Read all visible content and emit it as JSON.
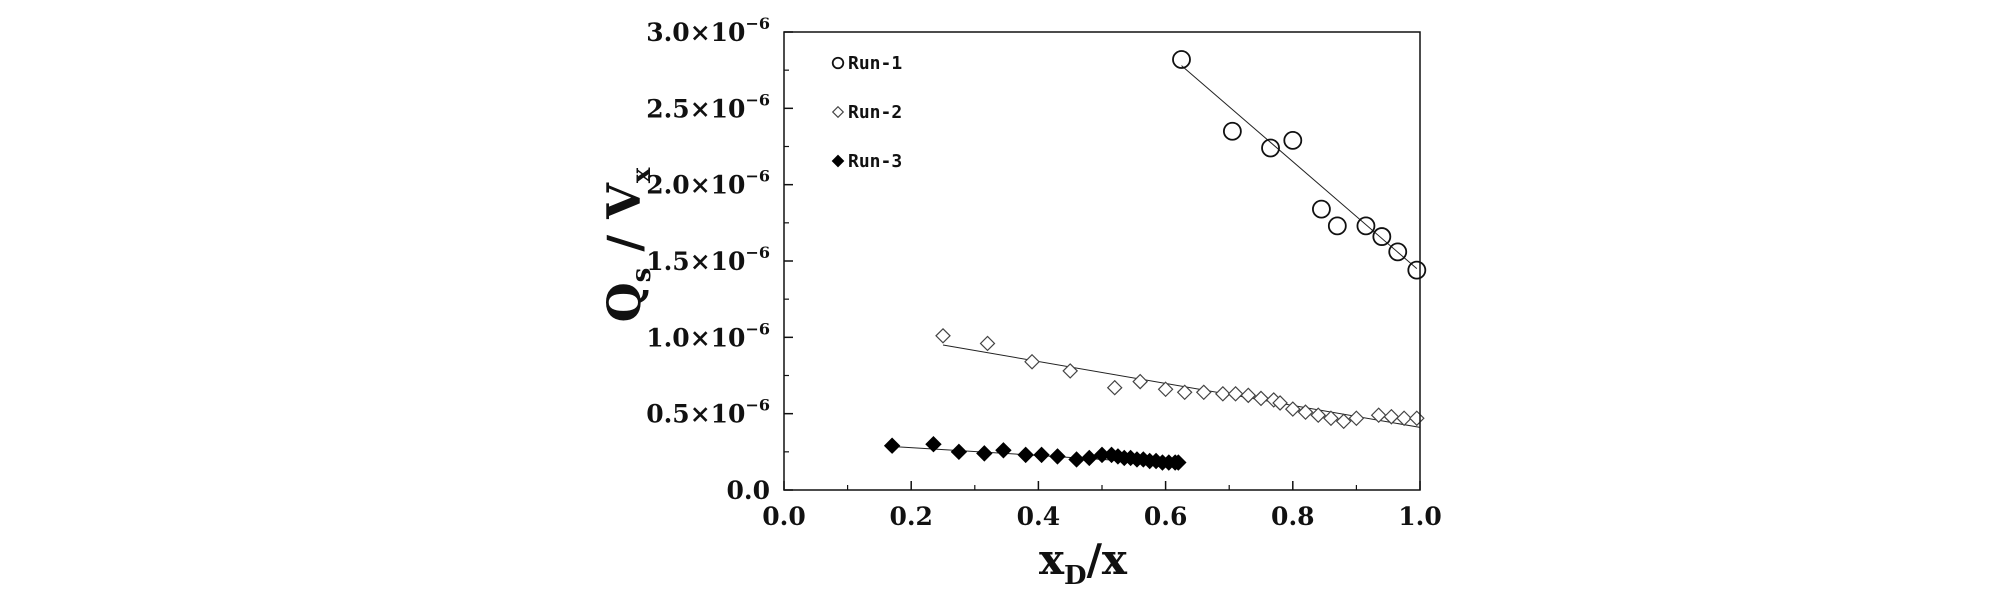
{
  "chart_data": {
    "type": "scatter",
    "title": "",
    "xlabel": {
      "main": "x",
      "sub": "D",
      "rest": "/x"
    },
    "ylabel": {
      "q": "Q",
      "q_sub": "s",
      "sep": " / ",
      "v": "V",
      "v_sub": "x"
    },
    "xlim": [
      0.0,
      1.0
    ],
    "ylim": [
      0.0,
      3e-06
    ],
    "x_ticks": [
      0.0,
      0.2,
      0.4,
      0.6,
      0.8,
      1.0
    ],
    "x_tick_labels": [
      "0.0",
      "0.2",
      "0.4",
      "0.6",
      "0.8",
      "1.0"
    ],
    "y_ticks": [
      0.0,
      5e-07,
      1e-06,
      1.5e-06,
      2e-06,
      2.5e-06,
      3e-06
    ],
    "y_tick_labels": [
      {
        "mantissa": "0.0",
        "times": "",
        "exp": ""
      },
      {
        "mantissa": "0.5",
        "times": "×10",
        "exp": "−6"
      },
      {
        "mantissa": "1.0",
        "times": "×10",
        "exp": "−6"
      },
      {
        "mantissa": "1.5",
        "times": "×10",
        "exp": "−6"
      },
      {
        "mantissa": "2.0",
        "times": "×10",
        "exp": "−6"
      },
      {
        "mantissa": "2.5",
        "times": "×10",
        "exp": "−6"
      },
      {
        "mantissa": "3.0",
        "times": "×10",
        "exp": "−6"
      }
    ],
    "grid": false,
    "legend_position": "top-left",
    "series": [
      {
        "name": "Run-1",
        "marker": "open-circle",
        "points": [
          [
            0.625,
            2.82e-06
          ],
          [
            0.705,
            2.35e-06
          ],
          [
            0.765,
            2.24e-06
          ],
          [
            0.8,
            2.29e-06
          ],
          [
            0.845,
            1.84e-06
          ],
          [
            0.87,
            1.73e-06
          ],
          [
            0.915,
            1.73e-06
          ],
          [
            0.94,
            1.66e-06
          ],
          [
            0.965,
            1.56e-06
          ],
          [
            0.995,
            1.44e-06
          ]
        ],
        "fit": [
          [
            0.625,
            2.78e-06
          ],
          [
            0.995,
            1.45e-06
          ]
        ]
      },
      {
        "name": "Run-2",
        "marker": "open-diamond",
        "points": [
          [
            0.25,
            1.01e-06
          ],
          [
            0.32,
            9.6e-07
          ],
          [
            0.39,
            8.4e-07
          ],
          [
            0.45,
            7.8e-07
          ],
          [
            0.52,
            6.7e-07
          ],
          [
            0.56,
            7.1e-07
          ],
          [
            0.6,
            6.6e-07
          ],
          [
            0.63,
            6.4e-07
          ],
          [
            0.66,
            6.4e-07
          ],
          [
            0.69,
            6.3e-07
          ],
          [
            0.71,
            6.3e-07
          ],
          [
            0.73,
            6.2e-07
          ],
          [
            0.75,
            6e-07
          ],
          [
            0.77,
            5.9e-07
          ],
          [
            0.78,
            5.7e-07
          ],
          [
            0.8,
            5.3e-07
          ],
          [
            0.82,
            5.1e-07
          ],
          [
            0.84,
            4.9e-07
          ],
          [
            0.86,
            4.7e-07
          ],
          [
            0.88,
            4.5e-07
          ],
          [
            0.9,
            4.7e-07
          ],
          [
            0.935,
            4.9e-07
          ],
          [
            0.955,
            4.8e-07
          ],
          [
            0.975,
            4.7e-07
          ],
          [
            0.995,
            4.7e-07
          ]
        ],
        "fit": [
          [
            0.25,
            9.5e-07
          ],
          [
            1.0,
            4.1e-07
          ]
        ]
      },
      {
        "name": "Run-3",
        "marker": "filled-diamond",
        "points": [
          [
            0.17,
            2.9e-07
          ],
          [
            0.235,
            3e-07
          ],
          [
            0.275,
            2.5e-07
          ],
          [
            0.315,
            2.4e-07
          ],
          [
            0.345,
            2.6e-07
          ],
          [
            0.38,
            2.3e-07
          ],
          [
            0.405,
            2.3e-07
          ],
          [
            0.43,
            2.2e-07
          ],
          [
            0.46,
            2e-07
          ],
          [
            0.48,
            2.1e-07
          ],
          [
            0.5,
            2.3e-07
          ],
          [
            0.515,
            2.3e-07
          ],
          [
            0.525,
            2.2e-07
          ],
          [
            0.535,
            2.1e-07
          ],
          [
            0.545,
            2.1e-07
          ],
          [
            0.555,
            2e-07
          ],
          [
            0.565,
            2e-07
          ],
          [
            0.575,
            1.9e-07
          ],
          [
            0.585,
            1.9e-07
          ],
          [
            0.595,
            1.8e-07
          ],
          [
            0.605,
            1.8e-07
          ],
          [
            0.615,
            1.8e-07
          ],
          [
            0.62,
            1.8e-07
          ]
        ],
        "fit": [
          [
            0.17,
            2.85e-07
          ],
          [
            0.62,
            1.7e-07
          ]
        ]
      }
    ]
  }
}
